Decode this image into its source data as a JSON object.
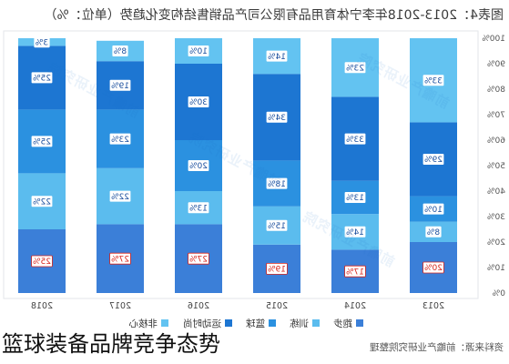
{
  "caption": "篮球装备品牌竞争态势",
  "watermark": "前瞻产业研究院",
  "chart_data": {
    "type": "bar",
    "stacked": true,
    "title": "图表4：2013-2018年李宁体育用品有限公司产品销售结构变化趋势（单位：%）",
    "categories": [
      "2013",
      "2014",
      "2015",
      "2016",
      "2017",
      "2018"
    ],
    "series": [
      {
        "name": "跑步",
        "values": [
          20,
          17,
          19,
          27,
          27,
          25
        ],
        "color": "#3b7fd8"
      },
      {
        "name": "训练",
        "values": [
          8,
          14,
          15,
          13,
          22,
          22
        ],
        "color": "#5bbcee"
      },
      {
        "name": "篮球",
        "values": [
          10,
          13,
          18,
          20,
          23,
          25
        ],
        "color": "#2b91e0"
      },
      {
        "name": "运动时尚",
        "values": [
          29,
          33,
          34,
          30,
          19,
          25
        ],
        "color": "#1d76d2"
      },
      {
        "name": "非核心",
        "values": [
          33,
          23,
          14,
          10,
          8,
          3
        ],
        "color": "#63c3f1"
      }
    ],
    "unit": "%",
    "ylim": [
      0,
      100
    ],
    "y_ticks": [
      "0%",
      "10%",
      "20%",
      "30%",
      "40%",
      "50%",
      "60%",
      "70%",
      "80%",
      "90%",
      "100%"
    ],
    "grid": false,
    "data_labels": true,
    "label_color": "#1b4f9e",
    "highlight_label_color": "#d9261c",
    "legend_position": "bottom",
    "source": "资料来源：前瞻产业研究院整理"
  }
}
